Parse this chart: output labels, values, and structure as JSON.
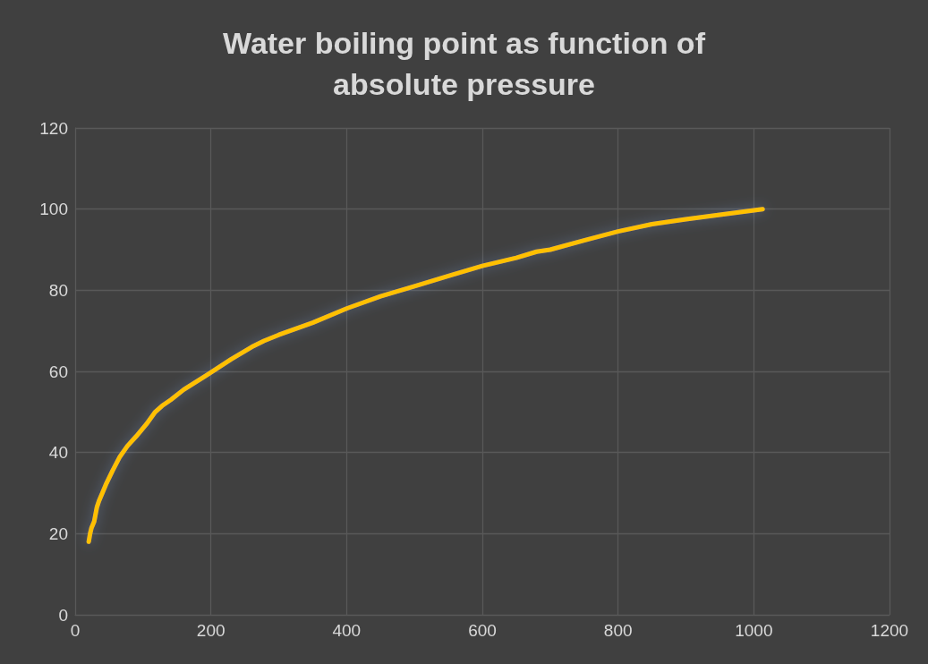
{
  "chart_data": {
    "type": "line",
    "title": "Water boiling point as function of\nabsolute pressure",
    "x": [
      20,
      22,
      24,
      28,
      32,
      35,
      45,
      55,
      66,
      77,
      90,
      105,
      118,
      128,
      141,
      160,
      193,
      230,
      260,
      278,
      300,
      350,
      400,
      450,
      500,
      550,
      600,
      650,
      680,
      700,
      750,
      800,
      850,
      900,
      950,
      1013
    ],
    "series": [
      {
        "color": "#ffc000",
        "values": [
          18,
          20,
          21.4,
          23,
          26.5,
          28,
          32,
          35.5,
          39,
          41.6,
          44,
          47,
          50,
          51.5,
          53,
          55.5,
          59,
          63,
          66,
          67.5,
          69,
          72,
          75.5,
          78.5,
          81,
          83.5,
          86,
          88,
          89.5,
          90,
          92.3,
          94.5,
          96.3,
          97.5,
          98.6,
          100
        ]
      }
    ],
    "xlim": [
      0,
      1200
    ],
    "xticks": [
      0,
      200,
      400,
      600,
      800,
      1000,
      1200
    ],
    "ylim": [
      0,
      120
    ],
    "yticks": [
      0,
      20,
      40,
      60,
      80,
      100,
      120
    ],
    "grid": true,
    "marker": "none",
    "line_style": "solid"
  }
}
